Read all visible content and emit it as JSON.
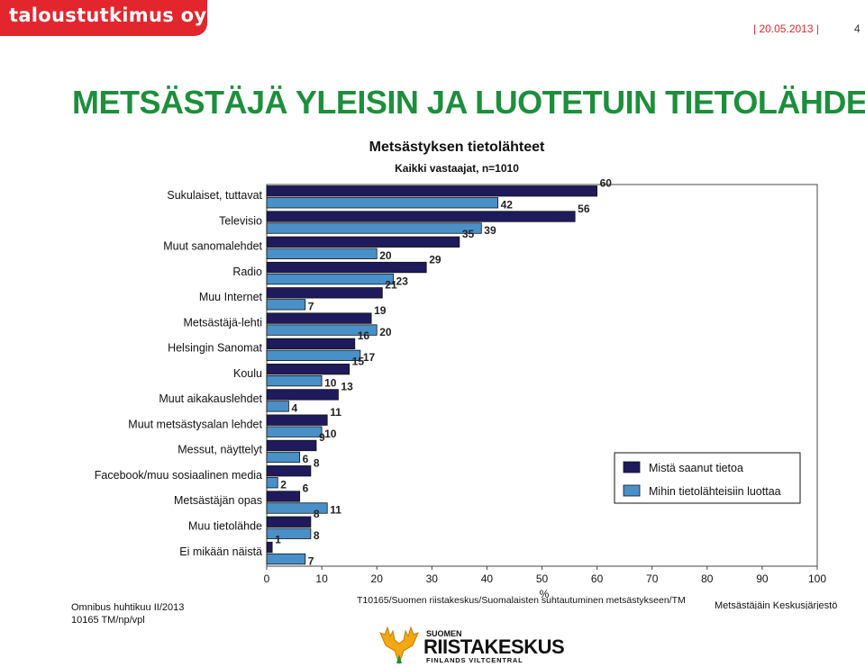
{
  "header": {
    "brand": "taloustutkimus oy",
    "date": "| 20.05.2013 |",
    "page_number": "4",
    "title": "METSÄSTÄJÄ  YLEISIN JA LUOTETUIN TIETOLÄHDE"
  },
  "footer": {
    "survey": "Omnibus huhtikuu II/2013",
    "code": "10165 TM/np/vpl",
    "source": "T10165/Suomen riistakeskus/Suomalaisten suhtautuminen metsästykseen/TM",
    "org": "Metsästäjäin Keskusjärjestö",
    "logo_top": "SUOMEN",
    "logo_main": "RIISTAKESKUS",
    "logo_sub": "FINLANDS VILTCENTRAL"
  },
  "chart_data": {
    "type": "bar",
    "orientation": "horizontal",
    "title": "Metsästyksen tietolähteet",
    "subtitle": "Kaikki vastaajat, n=1010",
    "xlabel": "%",
    "xlim": [
      0,
      100
    ],
    "x_ticks": [
      "0",
      "10",
      "20",
      "30",
      "40",
      "50",
      "60",
      "70",
      "80",
      "90",
      "100"
    ],
    "grid": false,
    "legend_position": "right",
    "categories": [
      "Sukulaiset, tuttavat",
      "Televisio",
      "Muut sanomalehdet",
      "Radio",
      "Muu Internet",
      "Metsästäjä-lehti",
      "Helsingin Sanomat",
      "Koulu",
      "Muut aikakauslehdet",
      "Muut metsästysalan lehdet",
      "Messut, näyttelyt",
      "Facebook/muu sosiaalinen media",
      "Metsästäjän opas",
      "Muu tietolähde",
      "Ei mikään näistä"
    ],
    "series": [
      {
        "name": "Mistä saanut tietoa",
        "color": "#1f1a5c",
        "values": [
          60,
          56,
          35,
          29,
          21,
          19,
          16,
          15,
          13,
          11,
          9,
          8,
          6,
          8,
          1
        ]
      },
      {
        "name": "Mihin tietolähteisiin luottaa",
        "color": "#4a90c8",
        "values": [
          42,
          39,
          20,
          23,
          7,
          20,
          17,
          10,
          4,
          10,
          6,
          2,
          11,
          8,
          7
        ]
      }
    ]
  }
}
